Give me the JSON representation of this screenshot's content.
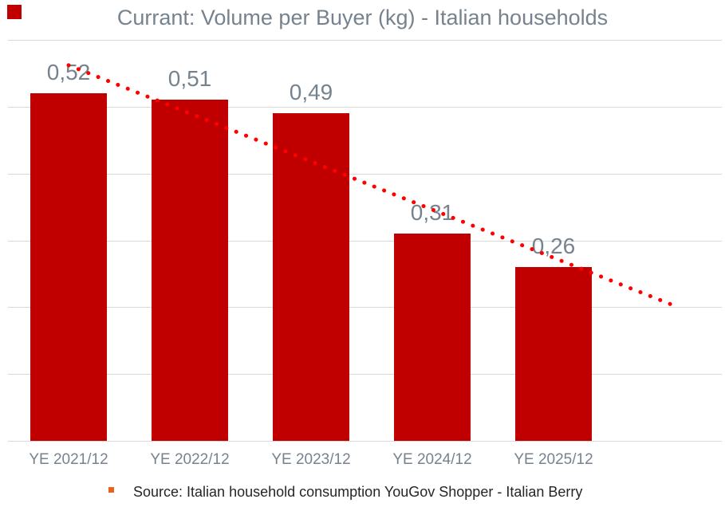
{
  "title": "Currant: Volume per Buyer (kg) - Italian households",
  "source": {
    "text": "Source: Italian household consumption YouGov Shopper - Italian Berry"
  },
  "colors": {
    "bar": "#C00000",
    "trendline": "#FF0000",
    "title_text": "#76838F",
    "value_label_text": "#76838F",
    "axis_label_text": "#76838F",
    "gridline": "#D9D9D9",
    "axis_line": "#D9D9D9",
    "source_text": "#262626",
    "source_bullet": "#E8641E",
    "corner_square": "#C00000"
  },
  "chart_data": {
    "type": "bar",
    "title": "Currant: Volume per Buyer (kg) - Italian households",
    "categories": [
      "YE 2021/12",
      "YE 2022/12",
      "YE 2023/12",
      "YE 2024/12",
      "YE 2025/12"
    ],
    "values": [
      0.52,
      0.51,
      0.49,
      0.31,
      0.26
    ],
    "value_labels": [
      "0,52",
      "0,51",
      "0,49",
      "0,31",
      "0,26"
    ],
    "xlabel": "",
    "ylabel": "",
    "ylim": [
      0,
      0.6
    ],
    "gridline_step": 0.1,
    "grid": true,
    "y_axis_labels_visible": false,
    "legend_position": "none",
    "trendline": {
      "style": "dotted",
      "type": "linear",
      "extends_periods_ahead": 1
    }
  }
}
